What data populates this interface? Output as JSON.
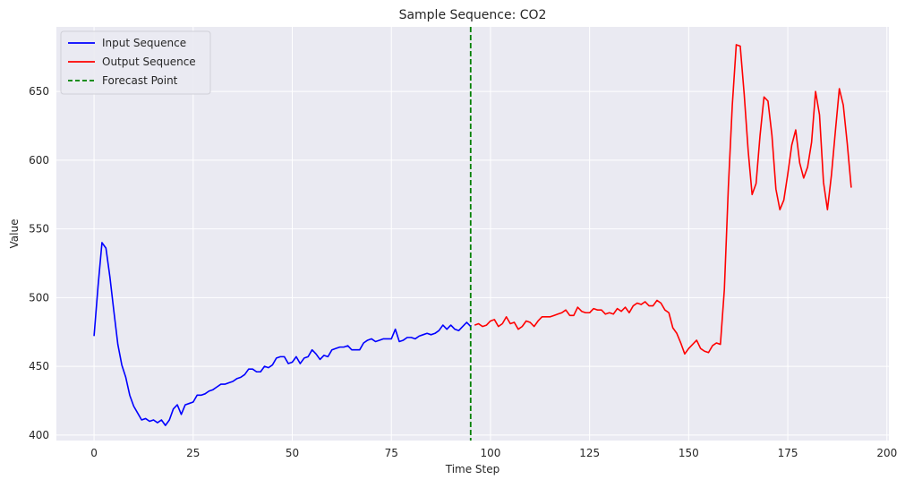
{
  "chart_data": {
    "type": "line",
    "title": "Sample Sequence: CO2",
    "xlabel": "Time Step",
    "ylabel": "Value",
    "xlim": [
      -9.5,
      200.5
    ],
    "ylim": [
      396,
      697
    ],
    "xticks": [
      0,
      25,
      50,
      75,
      100,
      125,
      150,
      175,
      200
    ],
    "yticks": [
      400,
      450,
      500,
      550,
      600,
      650
    ],
    "grid": true,
    "legend_position": "top-left",
    "background": "#eaeaf2",
    "forecast_point": {
      "x": 95,
      "label": "Forecast Point",
      "color": "#008000",
      "style": "dashed"
    },
    "series": [
      {
        "name": "Input Sequence",
        "color": "#0000ff",
        "x_start": 0,
        "values": [
          472,
          508,
          540,
          536,
          515,
          490,
          466,
          451,
          442,
          429,
          421,
          416,
          411,
          412,
          410,
          411,
          409,
          411,
          407,
          411,
          419,
          422,
          415,
          422,
          423,
          424,
          429,
          429,
          430,
          432,
          433,
          435,
          437,
          437,
          438,
          439,
          441,
          442,
          444,
          448,
          448,
          446,
          446,
          450,
          449,
          451,
          456,
          457,
          457,
          452,
          453,
          457,
          452,
          456,
          457,
          462,
          459,
          455,
          458,
          457,
          462,
          463,
          464,
          464,
          465,
          462,
          462,
          462,
          467,
          469,
          470,
          468,
          469,
          470,
          470,
          470,
          477,
          468,
          469,
          471,
          471,
          470,
          472,
          473,
          474,
          473,
          474,
          476,
          480,
          477,
          480,
          477,
          476,
          479,
          482,
          479
        ]
      },
      {
        "name": "Output Sequence",
        "color": "#ff0000",
        "x_start": 96,
        "values": [
          480,
          481,
          479,
          480,
          483,
          484,
          479,
          481,
          486,
          481,
          482,
          477,
          479,
          483,
          482,
          479,
          483,
          486,
          486,
          486,
          487,
          488,
          489,
          491,
          487,
          487,
          493,
          490,
          489,
          489,
          492,
          491,
          491,
          488,
          489,
          488,
          492,
          490,
          493,
          489,
          494,
          496,
          495,
          497,
          494,
          494,
          498,
          496,
          491,
          489,
          478,
          474,
          467,
          459,
          463,
          466,
          469,
          463,
          461,
          460,
          465,
          467,
          466,
          506,
          580,
          640,
          684,
          683,
          648,
          607,
          575,
          583,
          618,
          646,
          643,
          618,
          579,
          564,
          571,
          590,
          611,
          622,
          598,
          587,
          595,
          613,
          650,
          633,
          584,
          564,
          589,
          621,
          652,
          640,
          612,
          580
        ]
      }
    ]
  }
}
